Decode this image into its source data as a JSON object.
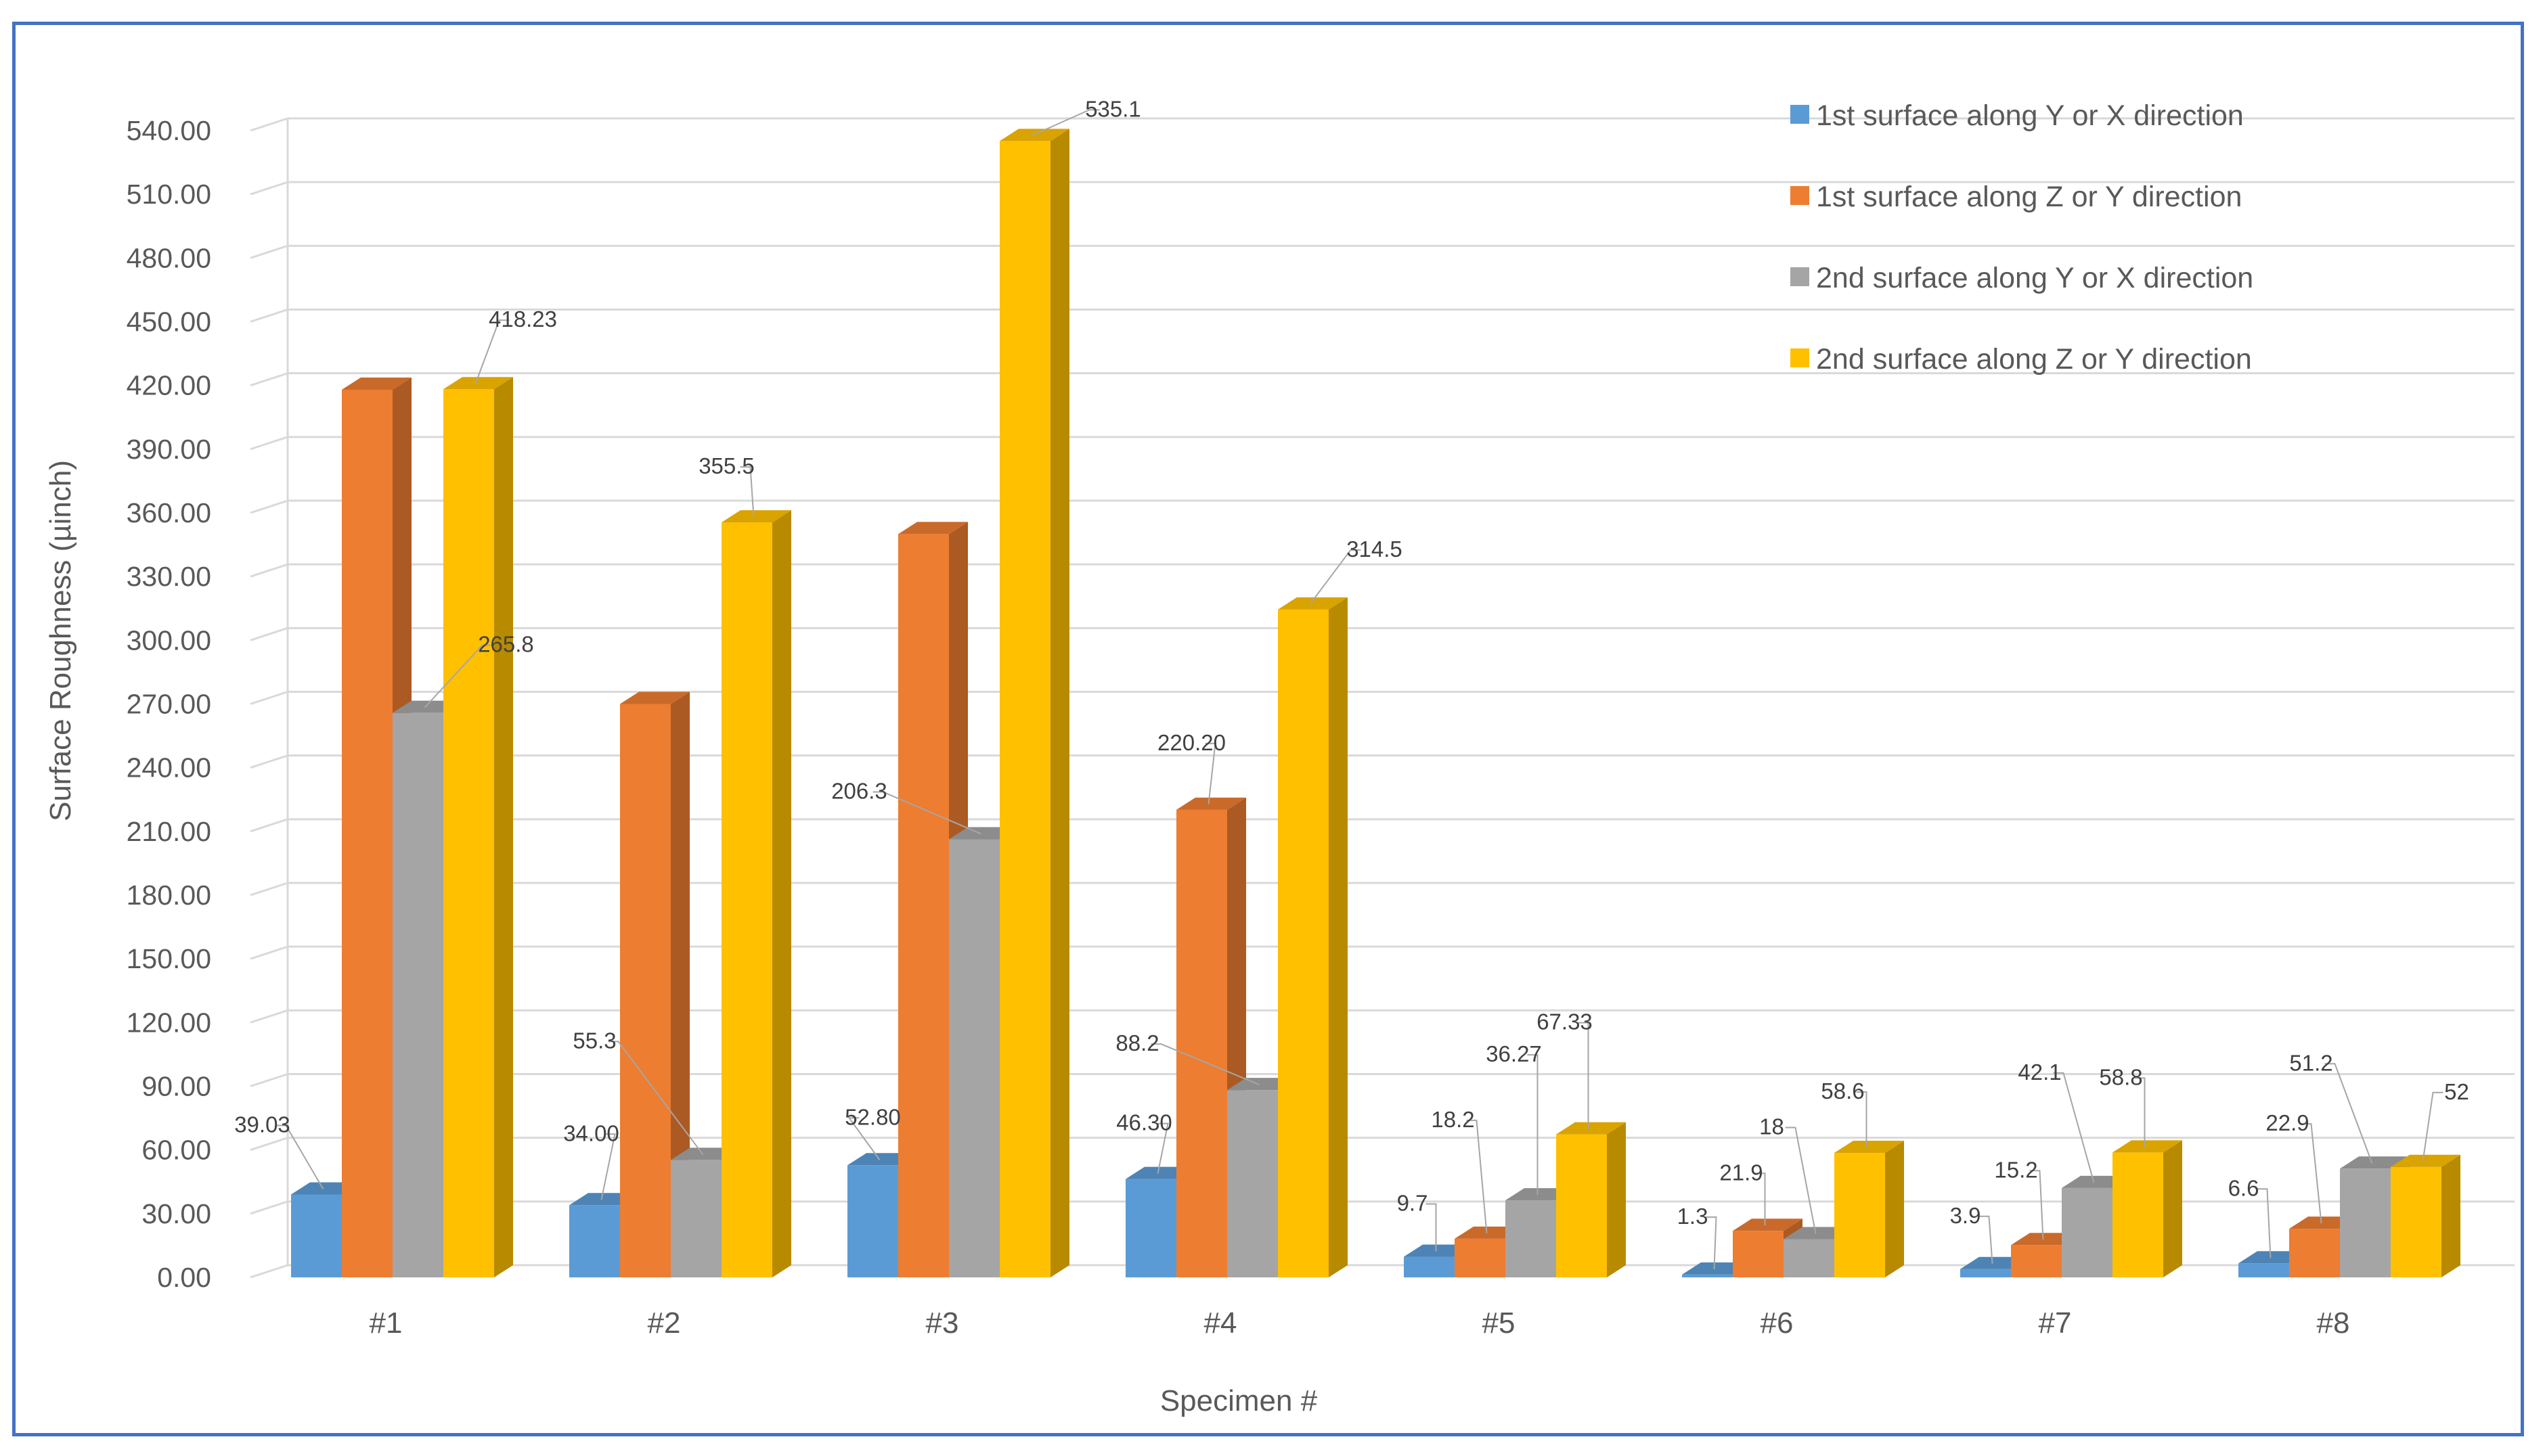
{
  "chart_data": {
    "type": "bar",
    "style": "3d-clustered-column",
    "xlabel": "Specimen #",
    "ylabel": "Surface Roughness (µinch)",
    "ylim": [
      0,
      540
    ],
    "ytick_step": 30,
    "ytick_labels": [
      "0.00",
      "30.00",
      "60.00",
      "90.00",
      "120.00",
      "150.00",
      "180.00",
      "210.00",
      "240.00",
      "270.00",
      "300.00",
      "330.00",
      "360.00",
      "390.00",
      "420.00",
      "450.00",
      "480.00",
      "510.00",
      "540.00"
    ],
    "grid": true,
    "legend_position": "top-right",
    "categories": [
      "#1",
      "#2",
      "#3",
      "#4",
      "#5",
      "#6",
      "#7",
      "#8"
    ],
    "series": [
      {
        "name": "1st surface along Y or X direction",
        "color": "#5b9bd5",
        "values": [
          39.03,
          34.0,
          52.8,
          46.3,
          9.7,
          1.3,
          3.9,
          6.6
        ],
        "labels": [
          "39.03",
          "34.00",
          "52.80",
          "46.30",
          "9.7",
          "1.3",
          "3.9",
          "6.6"
        ]
      },
      {
        "name": "1st surface along Z or Y direction",
        "color": "#ed7d31",
        "values": [
          418,
          270,
          350,
          220.2,
          18.2,
          21.9,
          15.2,
          22.9
        ],
        "labels": [
          "",
          "",
          "",
          "220.20",
          "18.2",
          "21.9",
          "15.2",
          "22.9"
        ]
      },
      {
        "name": "2nd surface along Y or X direction",
        "color": "#a5a5a5",
        "values": [
          265.8,
          55.3,
          206.3,
          88.2,
          36.27,
          18,
          42.1,
          51.2
        ],
        "labels": [
          "265.8",
          "55.3",
          "206.3",
          "88.2",
          "36.27",
          "18",
          "42.1",
          "51.2"
        ]
      },
      {
        "name": "2nd surface along Z or Y direction",
        "color": "#ffc000",
        "values": [
          418.23,
          355.5,
          535.1,
          314.5,
          67.33,
          58.6,
          58.8,
          52
        ],
        "labels": [
          "418.23",
          "355.5",
          "535.1",
          "314.5",
          "67.33",
          "58.6",
          "58.8",
          "52"
        ]
      }
    ]
  }
}
